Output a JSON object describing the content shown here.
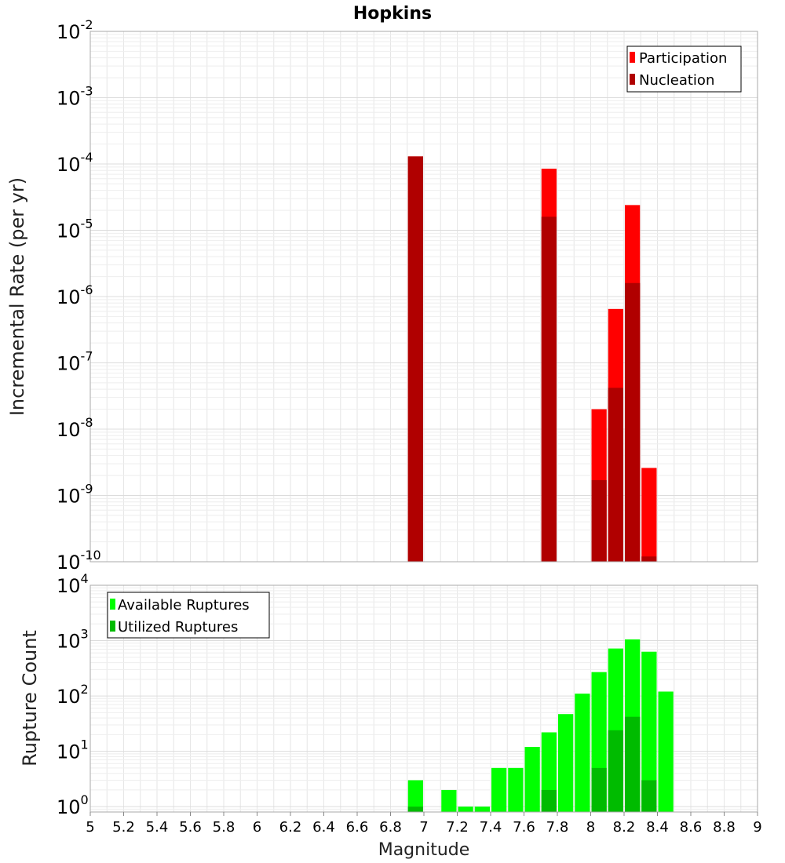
{
  "chart_data": [
    {
      "type": "bar",
      "title": "Hopkins",
      "ylabel": "Incremental Rate (per yr)",
      "xlabel": "",
      "xlim": [
        5,
        9
      ],
      "ylim": [
        1e-10,
        0.01
      ],
      "yscale": "log",
      "bin_width": 0.1,
      "grid": true,
      "legend_position": "top-right",
      "ytick_labels": [
        {
          "base": "10",
          "exp": "-10"
        },
        {
          "base": "10",
          "exp": "-9"
        },
        {
          "base": "10",
          "exp": "-8"
        },
        {
          "base": "10",
          "exp": "-7"
        },
        {
          "base": "10",
          "exp": "-6"
        },
        {
          "base": "10",
          "exp": "-5"
        },
        {
          "base": "10",
          "exp": "-4"
        },
        {
          "base": "10",
          "exp": "-3"
        },
        {
          "base": "10",
          "exp": "-2"
        }
      ],
      "series": [
        {
          "name": "Participation",
          "color": "#ff0000",
          "x": [
            6.95,
            7.75,
            8.05,
            8.15,
            8.25,
            8.35
          ],
          "values": [
            0.00013,
            8.5e-05,
            2e-08,
            6.5e-07,
            2.4e-05,
            2.6e-09
          ]
        },
        {
          "name": "Nucleation",
          "color": "#b00000",
          "x": [
            6.95,
            7.75,
            8.05,
            8.15,
            8.25,
            8.35
          ],
          "values": [
            0.00013,
            1.6e-05,
            1.7e-09,
            4.2e-08,
            1.6e-06,
            1.2e-10
          ]
        }
      ]
    },
    {
      "type": "bar",
      "title": "",
      "ylabel": "Rupture Count",
      "xlabel": "Magnitude",
      "xlim": [
        5,
        9
      ],
      "ylim": [
        0.8,
        10000.0
      ],
      "yscale": "log",
      "bin_width": 0.1,
      "grid": true,
      "legend_position": "top-left",
      "xtick_labels": [
        "5",
        "5.2",
        "5.4",
        "5.6",
        "5.8",
        "6",
        "6.2",
        "6.4",
        "6.6",
        "6.8",
        "7",
        "7.2",
        "7.4",
        "7.6",
        "7.8",
        "8",
        "8.2",
        "8.4",
        "8.6",
        "8.8",
        "9"
      ],
      "ytick_labels": [
        {
          "base": "10",
          "exp": "0"
        },
        {
          "base": "10",
          "exp": "1"
        },
        {
          "base": "10",
          "exp": "2"
        },
        {
          "base": "10",
          "exp": "3"
        },
        {
          "base": "10",
          "exp": "4"
        }
      ],
      "series": [
        {
          "name": "Available Ruptures",
          "color": "#00ff00",
          "x": [
            6.95,
            7.15,
            7.25,
            7.35,
            7.45,
            7.55,
            7.65,
            7.75,
            7.85,
            7.95,
            8.05,
            8.15,
            8.25,
            8.35,
            8.45
          ],
          "values": [
            3,
            2,
            1,
            1,
            5,
            5,
            12,
            22,
            47,
            110,
            270,
            720,
            1050,
            630,
            120
          ]
        },
        {
          "name": "Utilized Ruptures",
          "color": "#00bb00",
          "x": [
            6.95,
            7.75,
            8.05,
            8.15,
            8.25,
            8.35
          ],
          "values": [
            1,
            2,
            5,
            24,
            42,
            3
          ]
        }
      ]
    }
  ]
}
